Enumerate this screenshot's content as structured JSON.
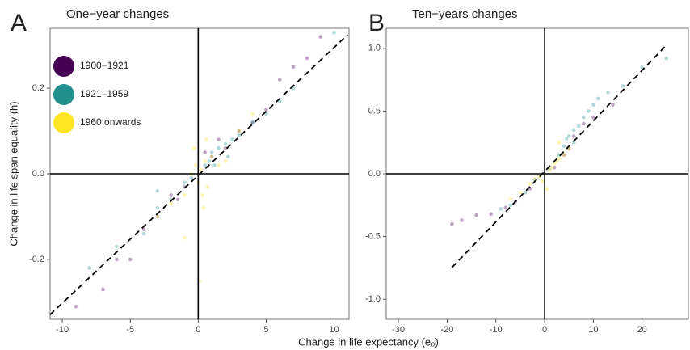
{
  "chart_data": [
    {
      "type": "scatter",
      "panel": "A",
      "title": "One−year changes",
      "xlim": [
        -10.9,
        11.1
      ],
      "ylim": [
        -0.34,
        0.34
      ],
      "xticks": [
        -10,
        -5,
        0,
        5,
        10
      ],
      "yticks": [
        -0.2,
        {
          "value": 0,
          "label": "0.0"
        },
        0.2
      ],
      "zero_lines": true,
      "legend": "top-left",
      "point_opacity": 0.35,
      "fit_line": {
        "x": [
          -10.9,
          11.0
        ],
        "y": [
          -0.329,
          0.325
        ]
      },
      "series": [
        {
          "name": "1900−1921",
          "color": "#440154",
          "x": [
            -9,
            -7,
            -6,
            -4,
            -3,
            -2,
            -1,
            1,
            2,
            3,
            4,
            5,
            6,
            7,
            9,
            -5,
            1.5,
            -1.5,
            0.5,
            8
          ],
          "values": [
            -0.31,
            -0.27,
            -0.2,
            -0.13,
            -0.1,
            -0.05,
            -0.03,
            0.04,
            0.06,
            0.1,
            0.12,
            0.15,
            0.22,
            0.25,
            0.32,
            -0.2,
            0.08,
            -0.06,
            0.05,
            0.27
          ]
        },
        {
          "name": "1921–1959",
          "color": "#21908C",
          "x": [
            -8,
            -6,
            -4,
            -3,
            -2,
            -1,
            0.5,
            1,
            1.5,
            2,
            2.5,
            3,
            4,
            5,
            6,
            0.8,
            1.2,
            -0.5,
            10,
            2.2,
            -3,
            7
          ],
          "values": [
            -0.22,
            -0.17,
            -0.14,
            -0.08,
            -0.06,
            -0.02,
            0.02,
            0.05,
            0.06,
            0.07,
            0.08,
            0.09,
            0.12,
            0.14,
            0.17,
            0.03,
            0.02,
            -0.01,
            0.33,
            0.04,
            -0.04,
            0.2
          ]
        },
        {
          "name": "1960 onwards",
          "color": "#FDE725",
          "x": [
            -0.5,
            0,
            0.2,
            0.5,
            1,
            -1,
            -2,
            0.3,
            0.7,
            1.5,
            -0.2,
            2,
            0.1,
            -1,
            3,
            4,
            -3,
            0.6,
            0.4,
            -0.3
          ],
          "values": [
            0.0,
            -0.02,
            0.01,
            0.03,
            0.04,
            -0.05,
            -0.07,
            -0.05,
            -0.03,
            0.02,
            0.02,
            0.03,
            -0.25,
            -0.15,
            0.1,
            0.14,
            -0.1,
            0.08,
            -0.08,
            0.06
          ]
        }
      ]
    },
    {
      "type": "scatter",
      "panel": "B",
      "title": "Ten−years changes",
      "xlim": [
        -32.5,
        29.5
      ],
      "ylim": [
        -1.16,
        1.16
      ],
      "xticks": [
        -30,
        -20,
        -10,
        0,
        10,
        20
      ],
      "yticks": [
        {
          "value": -1,
          "label": "-1.0"
        },
        -0.5,
        {
          "value": 0,
          "label": "0.0"
        },
        0.5,
        {
          "value": 1,
          "label": "1.0"
        }
      ],
      "zero_lines": true,
      "point_opacity": 0.35,
      "fit_line": {
        "x": [
          -19.0,
          25.1
        ],
        "y": [
          -0.746,
          1.03
        ]
      },
      "series": [
        {
          "color": "#440154",
          "x": [
            -19,
            -17,
            -14,
            -11,
            -8,
            -6,
            -3,
            2,
            4,
            6,
            8,
            10,
            14,
            5
          ],
          "values": [
            -0.4,
            -0.37,
            -0.33,
            -0.32,
            -0.27,
            -0.22,
            -0.12,
            0.05,
            0.15,
            0.3,
            0.4,
            0.45,
            0.55,
            0.2
          ]
        },
        {
          "color": "#21908C",
          "x": [
            -9,
            -7,
            -4,
            -2,
            1,
            3,
            4,
            5,
            6,
            7,
            8,
            9,
            10,
            11,
            13,
            16,
            20,
            25,
            6,
            4.5
          ],
          "values": [
            -0.28,
            -0.25,
            -0.15,
            -0.05,
            0.04,
            0.15,
            0.22,
            0.3,
            0.35,
            0.38,
            0.45,
            0.5,
            0.55,
            0.6,
            0.65,
            0.7,
            0.85,
            0.92,
            0.25,
            0.28
          ]
        },
        {
          "color": "#FDE725",
          "x": [
            -7,
            -5,
            -3,
            -2,
            -1,
            0,
            1,
            2,
            3,
            4,
            5,
            1.5,
            -0.5,
            2.5,
            0.5,
            3
          ],
          "values": [
            -0.2,
            -0.15,
            -0.08,
            -0.04,
            -0.02,
            0,
            0.03,
            0.08,
            0.12,
            0.15,
            0.2,
            0.05,
            -0.06,
            0.1,
            -0.12,
            0.25
          ]
        }
      ]
    }
  ],
  "xlabel": "Change in life expectancy (e₀)",
  "ylabel": "Change in life span equality (h)"
}
